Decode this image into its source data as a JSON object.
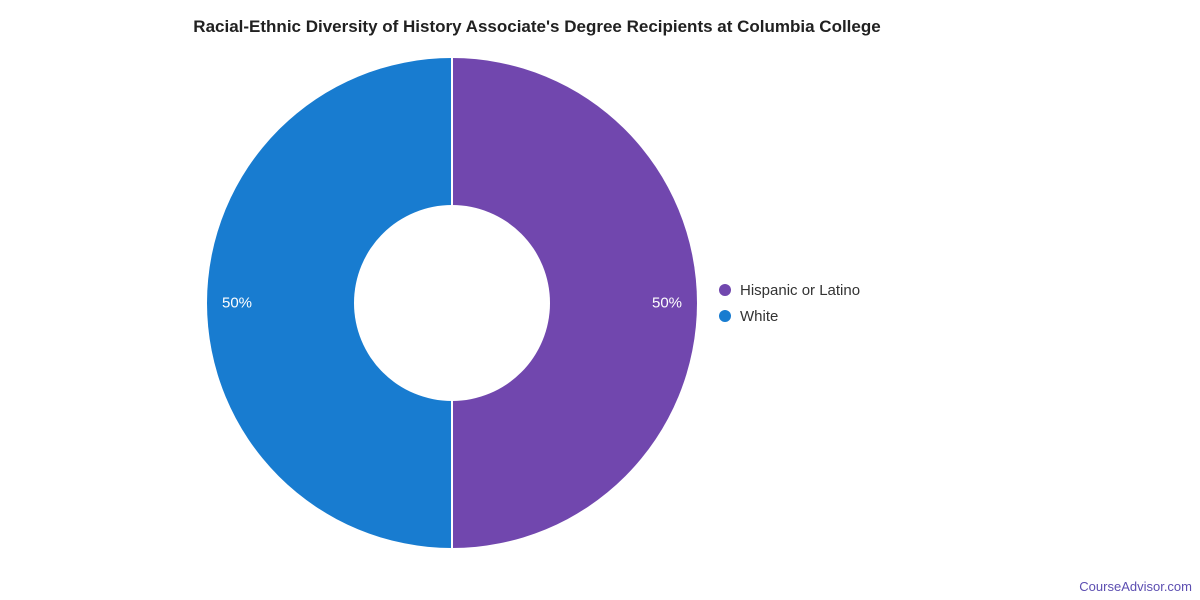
{
  "title": "Racial-Ethnic Diversity of History Associate's Degree Recipients at Columbia College",
  "attribution": "CourseAdvisor.com",
  "chart_data": {
    "type": "pie",
    "subtype": "donut",
    "title": "Racial-Ethnic Diversity of History Associate's Degree Recipients at Columbia College",
    "legend_position": "right",
    "labels": [
      "Hispanic or Latino",
      "White"
    ],
    "values": [
      50,
      50
    ],
    "slices": [
      {
        "label": "Hispanic or Latino",
        "value": 50,
        "display": "50%",
        "color": "#7147ae"
      },
      {
        "label": "White",
        "value": 50,
        "display": "50%",
        "color": "#187cd0"
      }
    ]
  }
}
